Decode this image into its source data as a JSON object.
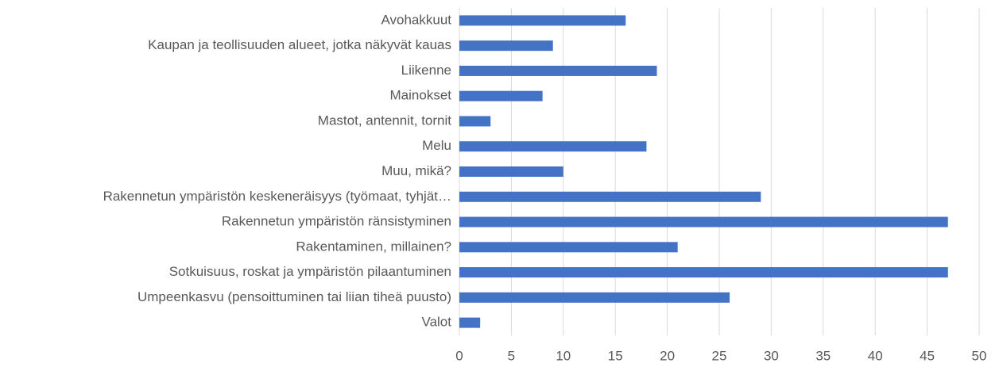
{
  "chart_data": {
    "type": "barh",
    "categories": [
      "Avohakkuut",
      "Kaupan ja teollisuuden alueet, jotka näkyvät kauas",
      "Liikenne",
      "Mainokset",
      "Mastot, antennit, tornit",
      "Melu",
      "Muu, mikä?",
      "Rakennetun ympäristön keskeneräisyys (työmaat, tyhjät…",
      "Rakennetun ympäristön ränsistyminen",
      "Rakentaminen, millainen?",
      "Sotkuisuus, roskat ja ympäristön pilaantuminen",
      "Umpeenkasvu (pensoittuminen tai liian tiheä puusto)",
      "Valot"
    ],
    "values": [
      16,
      9,
      19,
      8,
      3,
      18,
      10,
      29,
      47,
      21,
      47,
      26,
      2
    ],
    "color": "#4472c4",
    "xlim": [
      0,
      50
    ],
    "xticks": [
      0,
      5,
      10,
      15,
      20,
      25,
      30,
      35,
      40,
      45,
      50
    ],
    "grid": true
  }
}
